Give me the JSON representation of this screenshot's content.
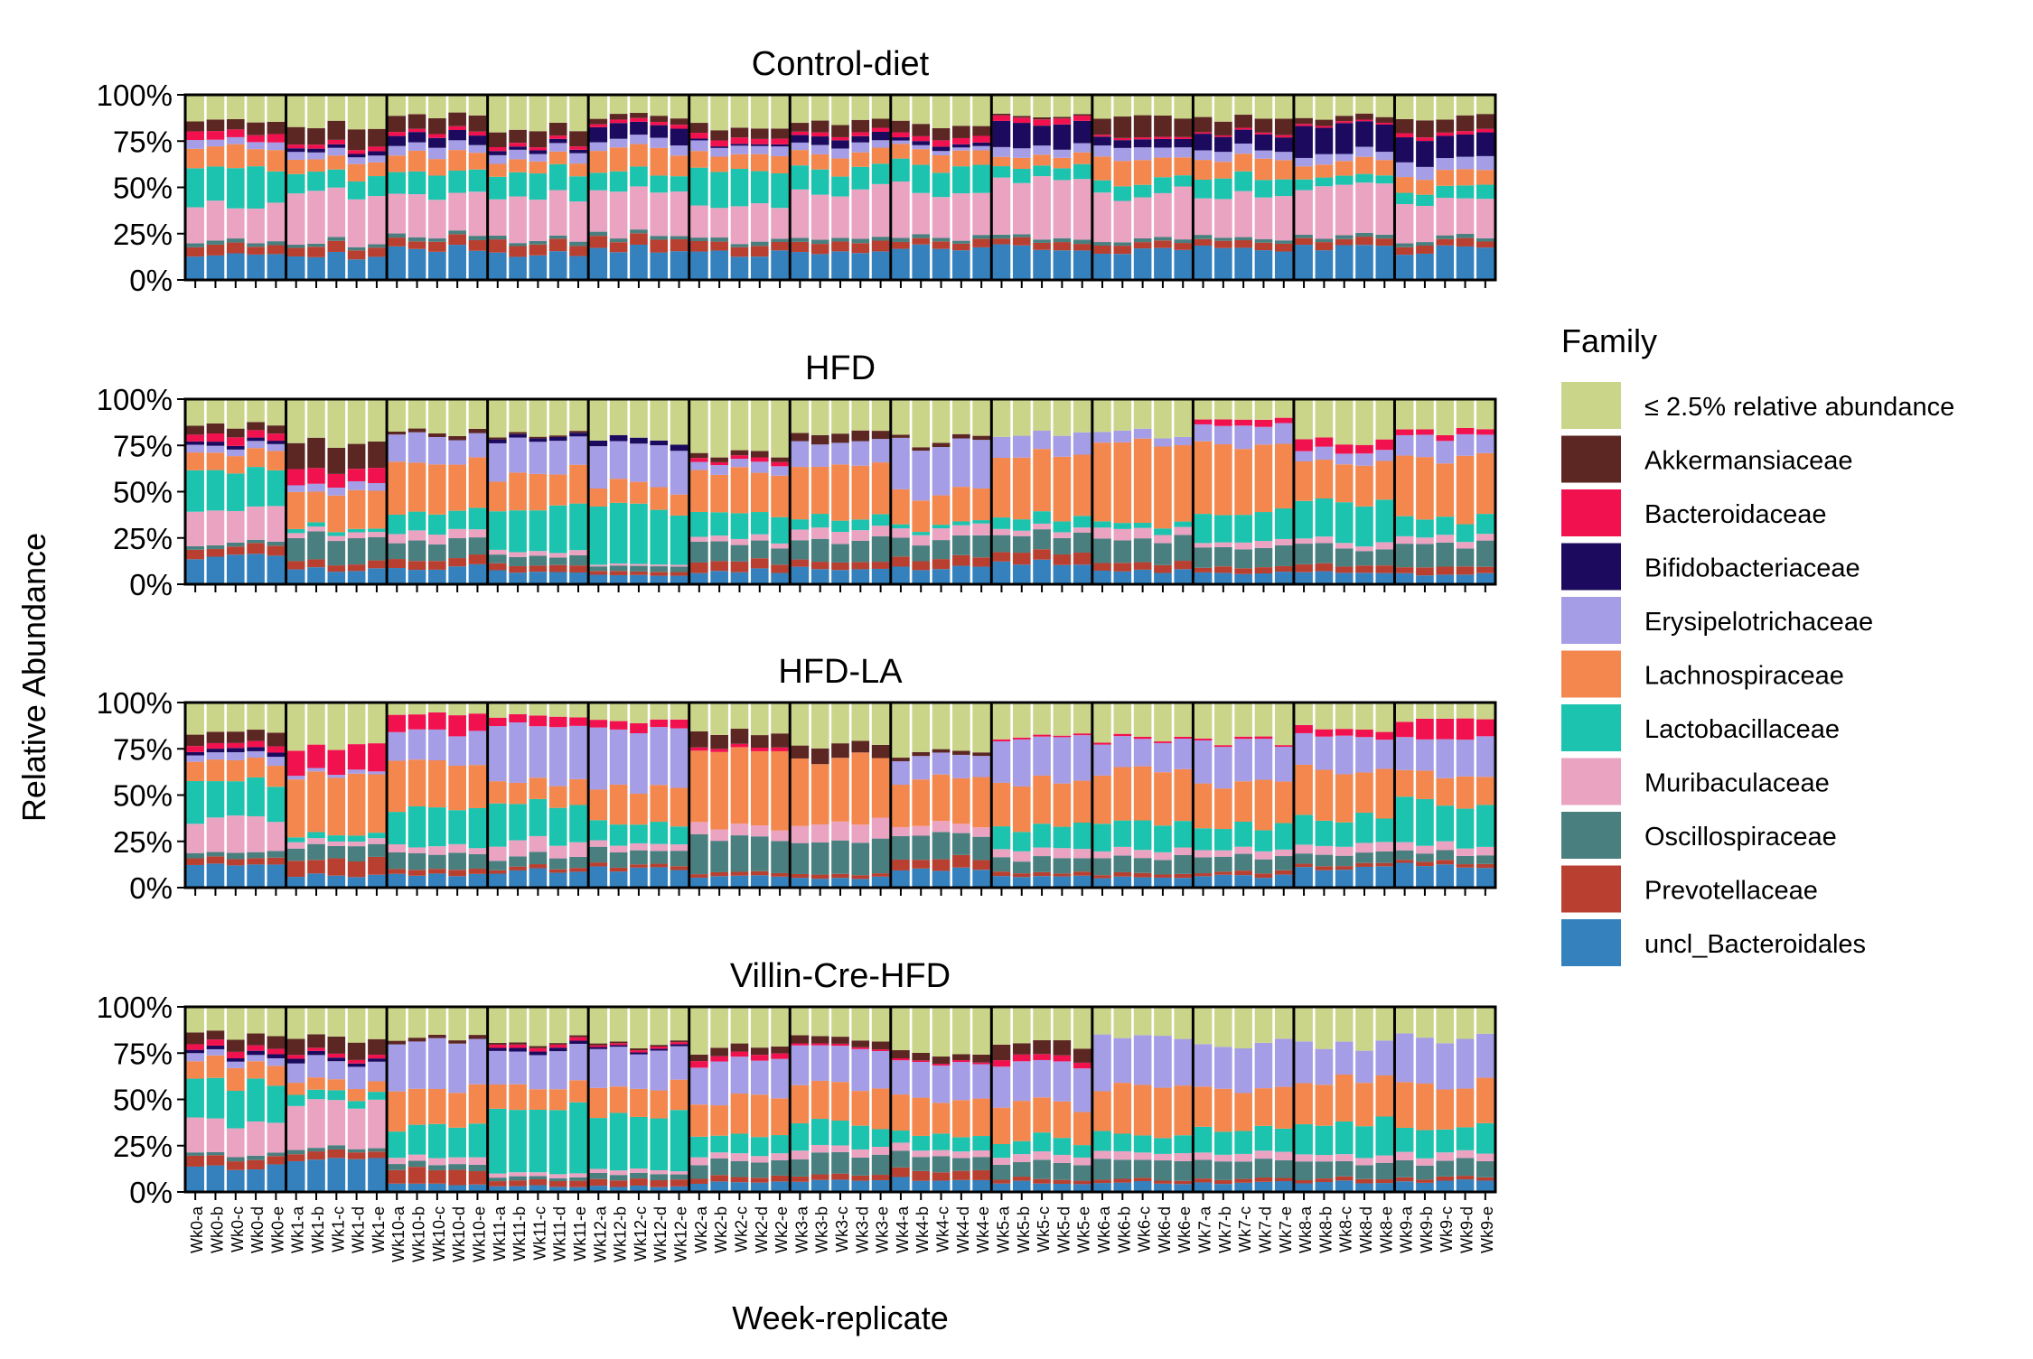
{
  "chart_data": {
    "type": "bar",
    "stacked": true,
    "ylabel": "Relative Abundance",
    "xlabel": "Week-replicate",
    "yticks": [
      "0%",
      "25%",
      "50%",
      "75%",
      "100%"
    ],
    "ylim": [
      0,
      1
    ],
    "legend": {
      "title": "Family",
      "position": "right",
      "items": [
        {
          "name": "≤ 2.5% relative abundance",
          "color": "#CBD58A"
        },
        {
          "name": "Akkermansiaceae",
          "color": "#5C2723"
        },
        {
          "name": "Bacteroidaceae",
          "color": "#F2114F"
        },
        {
          "name": "Bifidobacteriaceae",
          "color": "#1B0A5E"
        },
        {
          "name": "Erysipelotrichaceae",
          "color": "#A59DE5"
        },
        {
          "name": "Lachnospiraceae",
          "color": "#F4874E"
        },
        {
          "name": "Lactobacillaceae",
          "color": "#1CC3AE"
        },
        {
          "name": "Muribaculaceae",
          "color": "#EBA3C2"
        },
        {
          "name": "Oscillospiraceae",
          "color": "#4A7F80"
        },
        {
          "name": "Prevotellaceae",
          "color": "#B94031"
        },
        {
          "name": "uncl_Bacteroidales",
          "color": "#3481BD"
        }
      ]
    },
    "stack_order_bottom_to_top": [
      "uncl_Bacteroidales",
      "Prevotellaceae",
      "Oscillospiraceae",
      "Muribaculaceae",
      "Lactobacillaceae",
      "Lachnospiraceae",
      "Erysipelotrichaceae",
      "Bifidobacteriaceae",
      "Bacteroidaceae",
      "Akkermansiaceae",
      "≤ 2.5% relative abundance"
    ],
    "week_groups": [
      "Wk0",
      "Wk1",
      "Wk10",
      "Wk11",
      "Wk12",
      "Wk2",
      "Wk3",
      "Wk4",
      "Wk5",
      "Wk6",
      "Wk7",
      "Wk8",
      "Wk9"
    ],
    "replicates": [
      "a",
      "b",
      "c",
      "d",
      "e"
    ],
    "categories": [
      "Wk0-a",
      "Wk0-b",
      "Wk0-c",
      "Wk0-d",
      "Wk0-e",
      "Wk1-a",
      "Wk1-b",
      "Wk1-c",
      "Wk1-d",
      "Wk1-e",
      "Wk10-a",
      "Wk10-b",
      "Wk10-c",
      "Wk10-d",
      "Wk10-e",
      "Wk11-a",
      "Wk11-b",
      "Wk11-c",
      "Wk11-d",
      "Wk11-e",
      "Wk12-a",
      "Wk12-b",
      "Wk12-c",
      "Wk12-d",
      "Wk12-e",
      "Wk2-a",
      "Wk2-b",
      "Wk2-c",
      "Wk2-d",
      "Wk2-e",
      "Wk3-a",
      "Wk3-b",
      "Wk3-c",
      "Wk3-d",
      "Wk3-e",
      "Wk4-a",
      "Wk4-b",
      "Wk4-c",
      "Wk4-d",
      "Wk4-e",
      "Wk5-a",
      "Wk5-b",
      "Wk5-c",
      "Wk5-d",
      "Wk5-e",
      "Wk6-a",
      "Wk6-b",
      "Wk6-c",
      "Wk6-d",
      "Wk6-e",
      "Wk7-a",
      "Wk7-b",
      "Wk7-c",
      "Wk7-d",
      "Wk7-e",
      "Wk8-a",
      "Wk8-b",
      "Wk8-c",
      "Wk8-d",
      "Wk8-e",
      "Wk9-a",
      "Wk9-b",
      "Wk9-c",
      "Wk9-d",
      "Wk9-e"
    ],
    "panels": [
      {
        "title": "Control-diet",
        "groups": [
          {
            "week": "Wk0",
            "values": [
              0.14,
              0.05,
              0.02,
              0.19,
              0.2,
              0.11,
              0.04,
              0.0,
              0.04,
              0.06,
              0.15
            ]
          },
          {
            "week": "Wk1",
            "values": [
              0.13,
              0.05,
              0.02,
              0.28,
              0.1,
              0.08,
              0.04,
              0.02,
              0.02,
              0.1,
              0.16
            ]
          },
          {
            "week": "Wk10",
            "values": [
              0.17,
              0.05,
              0.02,
              0.22,
              0.13,
              0.1,
              0.05,
              0.05,
              0.02,
              0.08,
              0.11
            ]
          },
          {
            "week": "Wk11",
            "values": [
              0.15,
              0.06,
              0.02,
              0.22,
              0.13,
              0.07,
              0.05,
              0.02,
              0.02,
              0.08,
              0.18
            ]
          },
          {
            "week": "Wk12",
            "values": [
              0.17,
              0.06,
              0.02,
              0.22,
              0.1,
              0.13,
              0.05,
              0.08,
              0.02,
              0.03,
              0.12
            ]
          },
          {
            "week": "Wk2",
            "values": [
              0.14,
              0.05,
              0.02,
              0.18,
              0.2,
              0.09,
              0.05,
              0.01,
              0.03,
              0.06,
              0.17
            ]
          },
          {
            "week": "Wk3",
            "values": [
              0.14,
              0.06,
              0.02,
              0.25,
              0.12,
              0.09,
              0.05,
              0.04,
              0.02,
              0.06,
              0.15
            ]
          },
          {
            "week": "Wk4",
            "values": [
              0.18,
              0.04,
              0.02,
              0.25,
              0.14,
              0.08,
              0.02,
              0.02,
              0.03,
              0.06,
              0.16
            ]
          },
          {
            "week": "Wk5",
            "values": [
              0.18,
              0.04,
              0.02,
              0.3,
              0.07,
              0.06,
              0.05,
              0.13,
              0.03,
              0.01,
              0.11
            ]
          },
          {
            "week": "Wk6",
            "values": [
              0.16,
              0.04,
              0.02,
              0.25,
              0.07,
              0.12,
              0.06,
              0.05,
              0.01,
              0.1,
              0.12
            ]
          },
          {
            "week": "Wk7",
            "values": [
              0.17,
              0.04,
              0.02,
              0.22,
              0.1,
              0.1,
              0.05,
              0.08,
              0.01,
              0.08,
              0.13
            ]
          },
          {
            "week": "Wk8",
            "values": [
              0.18,
              0.04,
              0.02,
              0.26,
              0.05,
              0.08,
              0.05,
              0.16,
              0.01,
              0.03,
              0.12
            ]
          },
          {
            "week": "Wk9",
            "values": [
              0.16,
              0.04,
              0.02,
              0.2,
              0.07,
              0.09,
              0.07,
              0.12,
              0.02,
              0.08,
              0.13
            ]
          }
        ]
      },
      {
        "title": "HFD",
        "groups": [
          {
            "week": "Wk0",
            "values": [
              0.14,
              0.05,
              0.02,
              0.18,
              0.21,
              0.11,
              0.04,
              0.02,
              0.04,
              0.05,
              0.14
            ]
          },
          {
            "week": "Wk1",
            "values": [
              0.08,
              0.04,
              0.15,
              0.03,
              0.02,
              0.18,
              0.04,
              0.0,
              0.08,
              0.15,
              0.23
            ]
          },
          {
            "week": "Wk10",
            "values": [
              0.09,
              0.05,
              0.1,
              0.05,
              0.1,
              0.26,
              0.15,
              0.0,
              0.0,
              0.02,
              0.18
            ]
          },
          {
            "week": "Wk11",
            "values": [
              0.07,
              0.04,
              0.05,
              0.03,
              0.24,
              0.18,
              0.18,
              0.02,
              0.0,
              0.01,
              0.18
            ]
          },
          {
            "week": "Wk12",
            "values": [
              0.05,
              0.02,
              0.03,
              0.01,
              0.3,
              0.11,
              0.23,
              0.03,
              0.0,
              0.0,
              0.22
            ]
          },
          {
            "week": "Wk2",
            "values": [
              0.07,
              0.05,
              0.1,
              0.03,
              0.13,
              0.22,
              0.05,
              0.0,
              0.02,
              0.03,
              0.3
            ]
          },
          {
            "week": "Wk3",
            "values": [
              0.09,
              0.04,
              0.12,
              0.06,
              0.06,
              0.28,
              0.13,
              0.0,
              0.0,
              0.05,
              0.17
            ]
          },
          {
            "week": "Wk4",
            "values": [
              0.09,
              0.05,
              0.1,
              0.06,
              0.02,
              0.18,
              0.25,
              0.0,
              0.0,
              0.02,
              0.23
            ]
          },
          {
            "week": "Wk5",
            "values": [
              0.11,
              0.06,
              0.11,
              0.03,
              0.06,
              0.33,
              0.11,
              0.0,
              0.0,
              0.0,
              0.19
            ]
          },
          {
            "week": "Wk6",
            "values": [
              0.07,
              0.04,
              0.12,
              0.05,
              0.03,
              0.46,
              0.05,
              0.0,
              0.0,
              0.0,
              0.18
            ]
          },
          {
            "week": "Wk7",
            "values": [
              0.06,
              0.03,
              0.11,
              0.03,
              0.15,
              0.38,
              0.1,
              0.0,
              0.03,
              0.0,
              0.11
            ]
          },
          {
            "week": "Wk8",
            "values": [
              0.06,
              0.04,
              0.09,
              0.03,
              0.22,
              0.22,
              0.06,
              0.0,
              0.05,
              0.0,
              0.23
            ]
          },
          {
            "week": "Wk9",
            "values": [
              0.06,
              0.04,
              0.12,
              0.04,
              0.1,
              0.33,
              0.11,
              0.0,
              0.03,
              0.0,
              0.17
            ]
          }
        ]
      },
      {
        "title": "HFD-LA",
        "groups": [
          {
            "week": "Wk0",
            "values": [
              0.14,
              0.04,
              0.03,
              0.18,
              0.2,
              0.11,
              0.04,
              0.02,
              0.03,
              0.06,
              0.15
            ]
          },
          {
            "week": "Wk1",
            "values": [
              0.07,
              0.09,
              0.08,
              0.03,
              0.03,
              0.3,
              0.02,
              0.0,
              0.15,
              0.0,
              0.23
            ]
          },
          {
            "week": "Wk10",
            "values": [
              0.07,
              0.03,
              0.08,
              0.04,
              0.2,
              0.25,
              0.17,
              0.0,
              0.1,
              0.0,
              0.06
            ]
          },
          {
            "week": "Wk11",
            "values": [
              0.09,
              0.02,
              0.06,
              0.08,
              0.2,
              0.13,
              0.3,
              0.0,
              0.05,
              0.0,
              0.07
            ]
          },
          {
            "week": "Wk12",
            "values": [
              0.1,
              0.02,
              0.08,
              0.04,
              0.11,
              0.2,
              0.3,
              0.0,
              0.05,
              0.0,
              0.1
            ]
          },
          {
            "week": "Wk2",
            "values": [
              0.06,
              0.02,
              0.2,
              0.06,
              0.0,
              0.4,
              0.0,
              0.0,
              0.02,
              0.08,
              0.16
            ]
          },
          {
            "week": "Wk3",
            "values": [
              0.05,
              0.02,
              0.18,
              0.1,
              0.0,
              0.35,
              0.0,
              0.0,
              0.0,
              0.07,
              0.23
            ]
          },
          {
            "week": "Wk4",
            "values": [
              0.1,
              0.06,
              0.12,
              0.05,
              0.0,
              0.26,
              0.13,
              0.0,
              0.0,
              0.02,
              0.26
            ]
          },
          {
            "week": "Wk5",
            "values": [
              0.06,
              0.02,
              0.08,
              0.05,
              0.12,
              0.24,
              0.25,
              0.0,
              0.01,
              0.0,
              0.17
            ]
          },
          {
            "week": "Wk6",
            "values": [
              0.05,
              0.02,
              0.09,
              0.04,
              0.16,
              0.27,
              0.17,
              0.0,
              0.01,
              0.0,
              0.19
            ]
          },
          {
            "week": "Wk7",
            "values": [
              0.06,
              0.02,
              0.08,
              0.04,
              0.12,
              0.25,
              0.22,
              0.0,
              0.01,
              0.0,
              0.2
            ]
          },
          {
            "week": "Wk8",
            "values": [
              0.1,
              0.02,
              0.06,
              0.05,
              0.15,
              0.25,
              0.18,
              0.0,
              0.04,
              0.0,
              0.15
            ]
          },
          {
            "week": "Wk9",
            "values": [
              0.12,
              0.02,
              0.05,
              0.04,
              0.22,
              0.17,
              0.18,
              0.0,
              0.1,
              0.0,
              0.1
            ]
          }
        ]
      },
      {
        "title": "Villin-Cre-HFD",
        "groups": [
          {
            "week": "Wk0",
            "values": [
              0.13,
              0.05,
              0.02,
              0.18,
              0.2,
              0.11,
              0.04,
              0.02,
              0.03,
              0.06,
              0.16
            ]
          },
          {
            "week": "Wk1",
            "values": [
              0.18,
              0.04,
              0.02,
              0.24,
              0.05,
              0.06,
              0.11,
              0.02,
              0.02,
              0.09,
              0.17
            ]
          },
          {
            "week": "Wk10",
            "values": [
              0.04,
              0.08,
              0.03,
              0.04,
              0.17,
              0.21,
              0.25,
              0.0,
              0.0,
              0.02,
              0.16
            ]
          },
          {
            "week": "Wk11",
            "values": [
              0.03,
              0.03,
              0.02,
              0.02,
              0.35,
              0.12,
              0.2,
              0.02,
              0.02,
              0.01,
              0.18
            ]
          },
          {
            "week": "Wk12",
            "values": [
              0.03,
              0.04,
              0.03,
              0.02,
              0.3,
              0.15,
              0.21,
              0.01,
              0.01,
              0.01,
              0.19
            ]
          },
          {
            "week": "Wk2",
            "values": [
              0.05,
              0.03,
              0.08,
              0.04,
              0.1,
              0.2,
              0.21,
              0.0,
              0.03,
              0.04,
              0.22
            ]
          },
          {
            "week": "Wk3",
            "values": [
              0.06,
              0.03,
              0.1,
              0.04,
              0.12,
              0.22,
              0.21,
              0.0,
              0.01,
              0.04,
              0.17
            ]
          },
          {
            "week": "Wk4",
            "values": [
              0.07,
              0.05,
              0.08,
              0.04,
              0.08,
              0.2,
              0.19,
              0.0,
              0.01,
              0.04,
              0.24
            ]
          },
          {
            "week": "Wk5",
            "values": [
              0.05,
              0.02,
              0.09,
              0.04,
              0.08,
              0.2,
              0.22,
              0.0,
              0.03,
              0.07,
              0.2
            ]
          },
          {
            "week": "Wk6",
            "values": [
              0.05,
              0.02,
              0.1,
              0.04,
              0.1,
              0.24,
              0.28,
              0.0,
              0.0,
              0.0,
              0.17
            ]
          },
          {
            "week": "Wk7",
            "values": [
              0.05,
              0.02,
              0.09,
              0.04,
              0.14,
              0.2,
              0.26,
              0.0,
              0.0,
              0.0,
              0.2
            ]
          },
          {
            "week": "Wk8",
            "values": [
              0.05,
              0.02,
              0.09,
              0.04,
              0.18,
              0.21,
              0.2,
              0.0,
              0.0,
              0.0,
              0.21
            ]
          },
          {
            "week": "Wk9",
            "values": [
              0.06,
              0.02,
              0.09,
              0.04,
              0.14,
              0.24,
              0.25,
              0.0,
              0.0,
              0.0,
              0.16
            ]
          }
        ]
      }
    ]
  }
}
